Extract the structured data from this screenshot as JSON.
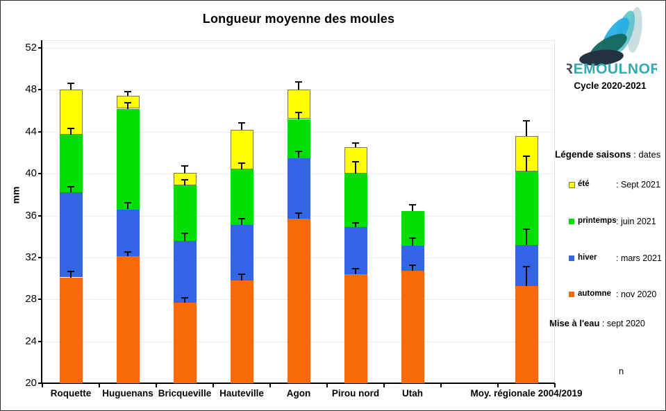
{
  "header": {
    "title": "Longueur moyenne des moules"
  },
  "logo": {
    "brand_r": "R",
    "brand_rest": "EMOULNOR",
    "cycle": "Cycle 2020-2021",
    "petal_colors": [
      "#233240",
      "#17695e",
      "#23aee3",
      "#57c2cb",
      "#bfd9d9"
    ],
    "brand_r_color": "#4d565c",
    "brand_rest_color": "#35a9b4"
  },
  "legend": {
    "title_bold": "Légende saisons",
    "title_sep": ":",
    "title_rest": "dates",
    "items": [
      {
        "label": "été",
        "date": ": Sept 2021",
        "color": "#ffff00"
      },
      {
        "label": "printemps",
        "date": ": juin 2021",
        "color": "#00df00"
      },
      {
        "label": "hiver",
        "date": ": mars 2021",
        "color": "#3465e6"
      },
      {
        "label": "automne",
        "date": ": nov 2020",
        "color": "#fb6a09"
      }
    ],
    "mise_label": "Mise à l'eau",
    "mise_date": ": sept 2020",
    "n_label": "n"
  },
  "chart_data": {
    "type": "bar",
    "stacked": true,
    "values_mode": "cumulative_levels_mm",
    "title": "Longueur moyenne des moules",
    "xlabel": "",
    "ylabel": "mm",
    "ylim": [
      20,
      52
    ],
    "y_ticks": [
      20,
      24,
      28,
      32,
      36,
      40,
      44,
      48,
      52
    ],
    "grid": "horizontal-light",
    "legend_position": "right",
    "categories": [
      "Roquette",
      "Huguenans",
      "Bricqueville",
      "Hauteville",
      "Agon",
      "Pirou nord",
      "Utah",
      "Moy. régionale 2004/2019"
    ],
    "category_slots": [
      0,
      1,
      2,
      3,
      4,
      5,
      6,
      8
    ],
    "total_slots": 9,
    "series": [
      {
        "name": "automne",
        "color": "#fb6a09",
        "values": [
          30.1,
          32.1,
          27.7,
          29.8,
          35.7,
          30.4,
          30.7,
          29.3
        ],
        "error_top": [
          30.7,
          32.6,
          28.2,
          30.5,
          36.3,
          31.0,
          31.3,
          31.2
        ]
      },
      {
        "name": "hiver",
        "color": "#3465e6",
        "values": [
          38.2,
          36.6,
          33.6,
          35.1,
          41.5,
          34.9,
          33.1,
          33.2
        ],
        "error_top": [
          38.8,
          37.3,
          34.4,
          35.8,
          42.2,
          35.4,
          33.9,
          34.8
        ]
      },
      {
        "name": "printemps",
        "color": "#00df00",
        "values": [
          43.7,
          46.2,
          38.9,
          40.4,
          45.2,
          40.0,
          36.4,
          40.2
        ],
        "error_top": [
          44.4,
          46.8,
          39.5,
          41.1,
          45.9,
          41.2,
          37.1,
          41.7
        ]
      },
      {
        "name": "été",
        "color": "#ffff00",
        "border_color": "#7a7a4a",
        "values": [
          48.0,
          47.4,
          40.1,
          44.2,
          48.0,
          42.5,
          null,
          43.6
        ],
        "error_top": [
          48.7,
          47.9,
          40.8,
          44.9,
          48.8,
          43.0,
          null,
          45.1
        ]
      }
    ]
  }
}
